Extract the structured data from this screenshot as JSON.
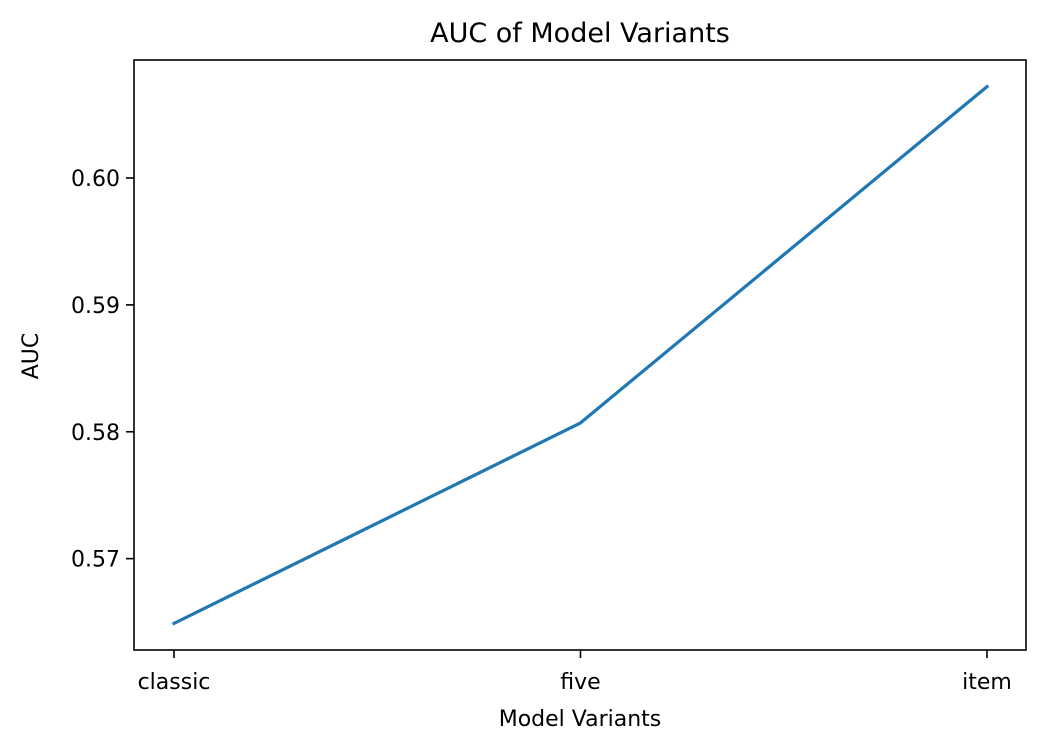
{
  "chart_data": {
    "type": "line",
    "title": "AUC of Model Variants",
    "xlabel": "Model Variants",
    "ylabel": "AUC",
    "categories": [
      "classic",
      "five",
      "item"
    ],
    "series": [
      {
        "values": [
          0.5649,
          0.5807,
          0.6072
        ]
      }
    ],
    "yticks": [
      0.57,
      0.58,
      0.59,
      0.6
    ],
    "ytick_labels": [
      "0.57",
      "0.58",
      "0.59",
      "0.60"
    ],
    "ylim": [
      0.5628,
      0.6093
    ],
    "grid": false,
    "line_color": "#1f77b4"
  }
}
